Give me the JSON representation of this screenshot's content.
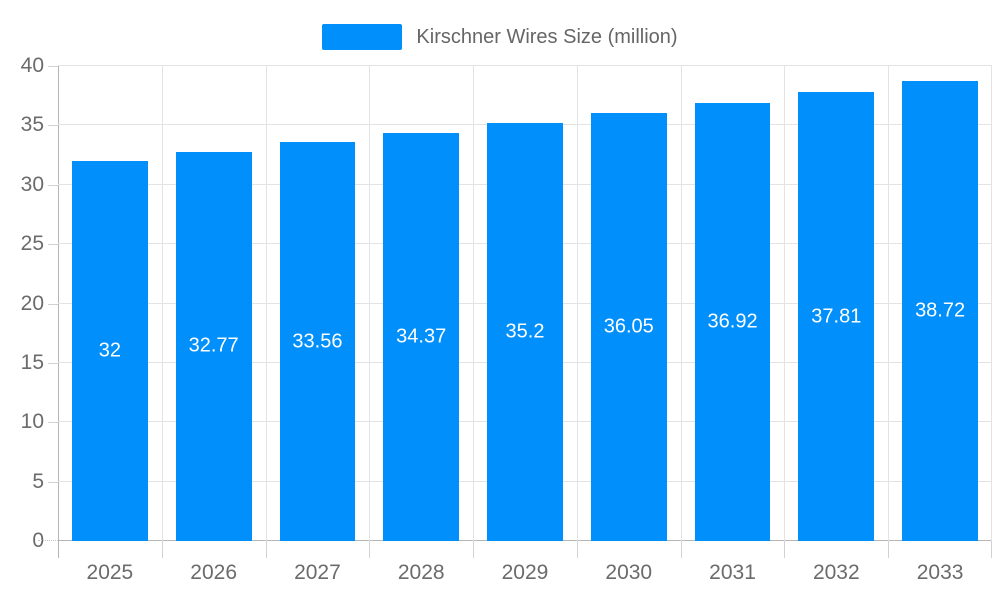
{
  "legend": {
    "label": "Kirschner Wires Size (million)"
  },
  "chart_data": {
    "type": "bar",
    "title": "Kirschner Wires Size (million)",
    "categories": [
      "2025",
      "2026",
      "2027",
      "2028",
      "2029",
      "2030",
      "2031",
      "2032",
      "2033"
    ],
    "values": [
      32,
      32.77,
      33.56,
      34.37,
      35.2,
      36.05,
      36.92,
      37.81,
      38.72
    ],
    "data_labels": [
      "32",
      "32.77",
      "33.56",
      "34.37",
      "35.2",
      "36.05",
      "36.92",
      "37.81",
      "38.72"
    ],
    "xlabel": "",
    "ylabel": "",
    "ylim": [
      0,
      40
    ],
    "yticks": [
      0,
      5,
      10,
      15,
      20,
      25,
      30,
      35,
      40
    ],
    "grid": true,
    "legend_position": "top",
    "bar_width_ratio": 0.73
  },
  "colors": {
    "bar": "#008FFB",
    "grid": "#e3e3e3",
    "axis": "#b5b5b5",
    "tick": "#d2d2d2",
    "axis_text": "#6b6b6b",
    "legend_text": "#666666",
    "data_label": "#ffffff",
    "background": "#ffffff"
  }
}
